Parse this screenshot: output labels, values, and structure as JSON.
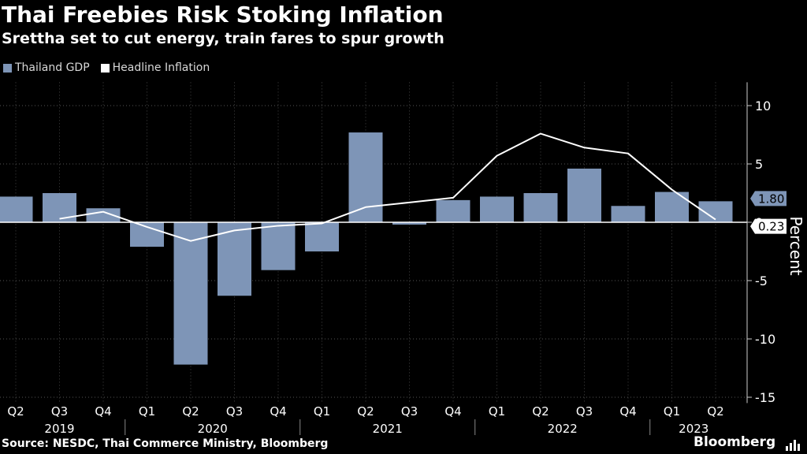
{
  "header": {
    "title": "Thai Freebies Risk Stoking Inflation",
    "subtitle": "Srettha set to cut energy, train fares to spur growth"
  },
  "legend": {
    "items": [
      {
        "label": "Thailand GDP",
        "color": "#7e95b7"
      },
      {
        "label": "Headline Inflation",
        "color": "#ffffff"
      }
    ]
  },
  "chart_data": {
    "type": "bar",
    "title": "Thai Freebies Risk Stoking Inflation",
    "subtitle": "Srettha set to cut energy, train fares to spur growth",
    "xlabel": "",
    "ylabel": "Percent",
    "ylim": [
      -15.5,
      12
    ],
    "yticks": [
      10,
      5,
      0,
      -5,
      -10,
      -15
    ],
    "grid": "horizontal dashed",
    "legend_position": "top-left",
    "categories": [
      "Q2",
      "Q3",
      "Q4",
      "Q1",
      "Q2",
      "Q3",
      "Q4",
      "Q1",
      "Q2",
      "Q3",
      "Q4",
      "Q1",
      "Q2",
      "Q3",
      "Q4",
      "Q1",
      "Q2"
    ],
    "year_labels": [
      {
        "label": "2019",
        "start": 0,
        "end": 2
      },
      {
        "label": "2020",
        "start": 3,
        "end": 6
      },
      {
        "label": "2021",
        "start": 7,
        "end": 10
      },
      {
        "label": "2022",
        "start": 11,
        "end": 14
      },
      {
        "label": "2023",
        "start": 15,
        "end": 16
      }
    ],
    "series": [
      {
        "name": "Thailand GDP",
        "type": "bar",
        "color": "#7e95b7",
        "values": [
          2.2,
          2.5,
          1.2,
          -2.1,
          -12.2,
          -6.3,
          -4.1,
          -2.5,
          7.7,
          -0.2,
          1.9,
          2.2,
          2.5,
          4.6,
          1.4,
          2.6,
          1.8
        ]
      },
      {
        "name": "Headline Inflation",
        "type": "line",
        "color": "#ffffff",
        "values": [
          null,
          0.3,
          0.9,
          -0.4,
          -1.6,
          -0.7,
          -0.3,
          -0.1,
          1.3,
          1.7,
          2.1,
          5.7,
          7.6,
          6.4,
          5.9,
          2.8,
          0.23
        ]
      }
    ],
    "value_labels": [
      {
        "series": "Thailand GDP",
        "text": "1.80",
        "value": 1.8
      },
      {
        "series": "Headline Inflation",
        "text": "0.23",
        "value": 0.23
      }
    ]
  },
  "footer": {
    "source": "Source: NESDC, Thai Commerce Ministry, Bloomberg",
    "brand": "Bloomberg"
  }
}
